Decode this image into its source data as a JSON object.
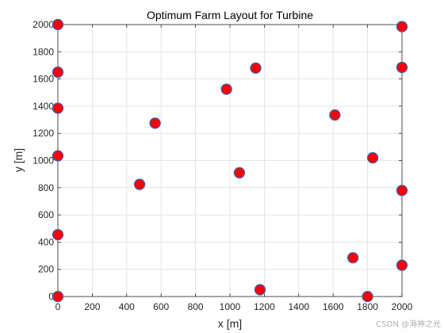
{
  "chart_data": {
    "type": "scatter",
    "title": "Optimum Farm Layout for Turbine",
    "xlabel": "x [m]",
    "ylabel": "y [m]",
    "xlim": [
      0,
      2000
    ],
    "ylim": [
      0,
      2000
    ],
    "xticks": [
      0,
      200,
      400,
      600,
      800,
      1000,
      1200,
      1400,
      1600,
      1800,
      2000
    ],
    "yticks": [
      0,
      200,
      400,
      600,
      800,
      1000,
      1200,
      1400,
      1600,
      1800,
      2000
    ],
    "grid": true,
    "marker_color": "#ff0000",
    "marker_edge_color": "#3b5fb5",
    "points": [
      {
        "x": 0,
        "y": 2000
      },
      {
        "x": 2000,
        "y": 1985
      },
      {
        "x": 0,
        "y": 1650
      },
      {
        "x": 1150,
        "y": 1680
      },
      {
        "x": 2000,
        "y": 1685
      },
      {
        "x": 980,
        "y": 1525
      },
      {
        "x": 0,
        "y": 1385
      },
      {
        "x": 1610,
        "y": 1335
      },
      {
        "x": 565,
        "y": 1275
      },
      {
        "x": 0,
        "y": 1035
      },
      {
        "x": 1830,
        "y": 1020
      },
      {
        "x": 1055,
        "y": 910
      },
      {
        "x": 475,
        "y": 825
      },
      {
        "x": 2000,
        "y": 780
      },
      {
        "x": 0,
        "y": 455
      },
      {
        "x": 1715,
        "y": 285
      },
      {
        "x": 2000,
        "y": 230
      },
      {
        "x": 1175,
        "y": 50
      },
      {
        "x": 0,
        "y": 0
      },
      {
        "x": 1800,
        "y": 0
      }
    ]
  },
  "watermark": "CSDN @海神之光"
}
